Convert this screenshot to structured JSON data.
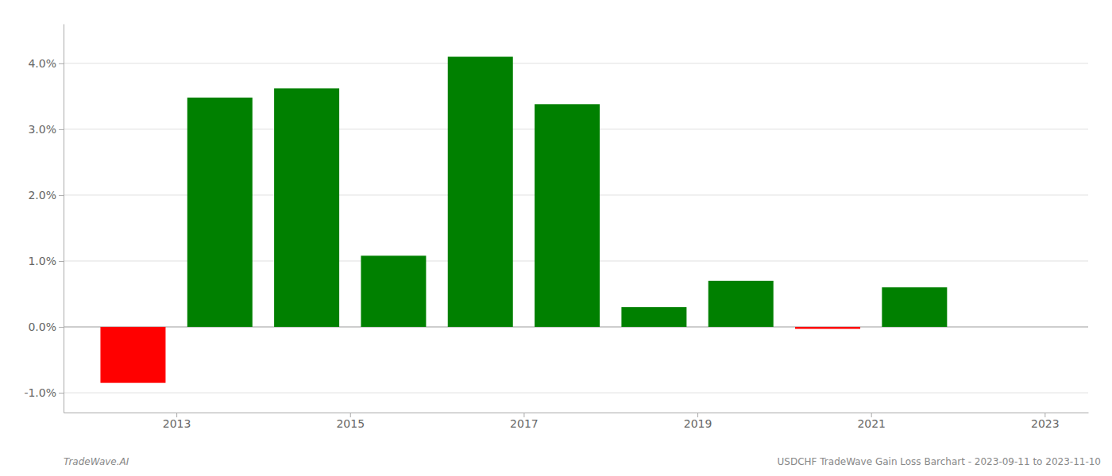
{
  "chart_data": {
    "type": "bar",
    "x": [
      2013,
      2014,
      2015,
      2016,
      2017,
      2018,
      2019,
      2020,
      2021,
      2022
    ],
    "values": [
      -0.0085,
      0.0348,
      0.0362,
      0.0108,
      0.041,
      0.0338,
      0.003,
      0.007,
      -0.0003,
      0.006
    ],
    "colors": [
      "#ff0000",
      "#008000",
      "#008000",
      "#008000",
      "#008000",
      "#008000",
      "#008000",
      "#008000",
      "#ff0000",
      "#008000"
    ],
    "xlim": [
      2012.2,
      2024.0
    ],
    "xticks": [
      {
        "value": 2013.5,
        "label": "2013"
      },
      {
        "value": 2015.5,
        "label": "2015"
      },
      {
        "value": 2017.5,
        "label": "2017"
      },
      {
        "value": 2019.5,
        "label": "2019"
      },
      {
        "value": 2021.5,
        "label": "2021"
      },
      {
        "value": 2023.5,
        "label": "2023"
      }
    ],
    "ylim": [
      -0.013,
      0.046
    ],
    "yticks": [
      {
        "value": -0.01,
        "label": "-1.0%"
      },
      {
        "value": 0.0,
        "label": "0.0%"
      },
      {
        "value": 0.01,
        "label": "1.0%"
      },
      {
        "value": 0.02,
        "label": "2.0%"
      },
      {
        "value": 0.03,
        "label": "3.0%"
      },
      {
        "value": 0.04,
        "label": "4.0%"
      }
    ],
    "grid": true,
    "annotations": [
      "TradeWave.AI",
      "USDCHF TradeWave Gain Loss Barchart - 2023-09-11 to 2023-11-10"
    ]
  }
}
